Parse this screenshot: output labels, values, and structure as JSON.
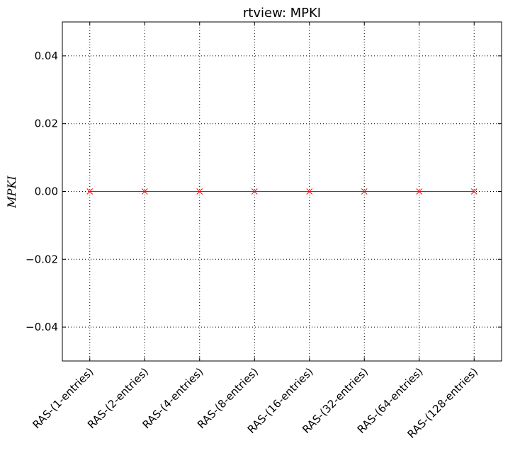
{
  "chart_data": {
    "type": "line",
    "title": "rtview: MPKI",
    "ylabel": "MPKI",
    "xlabel": "",
    "categories": [
      "RAS-(1-entries)",
      "RAS-(2-entries)",
      "RAS-(4-entries)",
      "RAS-(8-entries)",
      "RAS-(16-entries)",
      "RAS-(32-entries)",
      "RAS-(64-entries)",
      "RAS-(128-entries)"
    ],
    "series": [
      {
        "values": [
          0,
          0,
          0,
          0,
          0,
          0,
          0,
          0
        ],
        "color": "#ff0000",
        "marker": "x"
      }
    ],
    "ylim": [
      -0.05,
      0.05
    ],
    "yticks": [
      0.04,
      0.02,
      0.0,
      -0.02,
      -0.04
    ],
    "ytick_labels": [
      "0.04",
      "0.02",
      "0.00",
      "−0.02",
      "−0.04"
    ],
    "grid": true,
    "legend": "none"
  }
}
